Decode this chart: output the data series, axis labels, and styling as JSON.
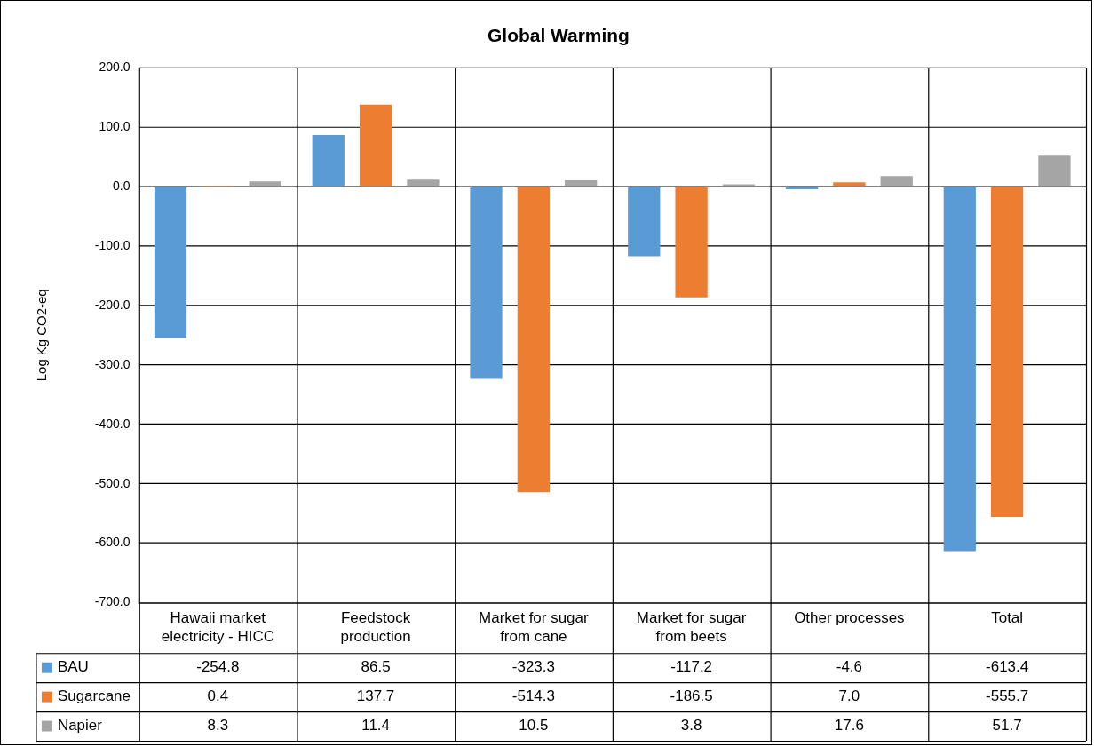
{
  "chart_data": {
    "type": "bar",
    "title": "Global Warming",
    "ylabel": "Log Kg CO2-eq",
    "categories": [
      "Hawaii market electricity - HICC",
      "Feedstock production",
      "Market for sugar from cane",
      "Market for sugar from beets",
      "Other processes",
      "Total"
    ],
    "series": [
      {
        "name": "BAU",
        "color": "#5b9bd5",
        "values": [
          -254.8,
          86.5,
          -323.3,
          -117.2,
          -4.6,
          -613.4
        ],
        "value_labels": [
          "-254.8",
          "86.5",
          "-323.3",
          "-117.2",
          "-4.6",
          "-613.4"
        ]
      },
      {
        "name": "Sugarcane",
        "color": "#ed7d31",
        "values": [
          0.4,
          137.7,
          -514.3,
          -186.5,
          7.0,
          -555.7
        ],
        "value_labels": [
          "0.4",
          "137.7",
          "-514.3",
          "-186.5",
          "7.0",
          "-555.7"
        ]
      },
      {
        "name": "Napier",
        "color": "#a5a5a5",
        "values": [
          8.3,
          11.4,
          10.5,
          3.8,
          17.6,
          51.7
        ],
        "value_labels": [
          "8.3",
          "11.4",
          "10.5",
          "3.8",
          "17.6",
          "51.7"
        ]
      }
    ],
    "ylim": [
      -700,
      200
    ],
    "yticks": [
      {
        "value": -700,
        "label": "-700.0"
      },
      {
        "value": -600,
        "label": "-600.0"
      },
      {
        "value": -500,
        "label": "-500.0"
      },
      {
        "value": -400,
        "label": "-400.0"
      },
      {
        "value": -300,
        "label": "-300.0"
      },
      {
        "value": -200,
        "label": "-200.0"
      },
      {
        "value": -100,
        "label": "-100.0"
      },
      {
        "value": 0,
        "label": "0.0"
      },
      {
        "value": 100,
        "label": "100.0"
      },
      {
        "value": 200,
        "label": "200.0"
      }
    ],
    "grid": true,
    "legend": "bottom left"
  }
}
